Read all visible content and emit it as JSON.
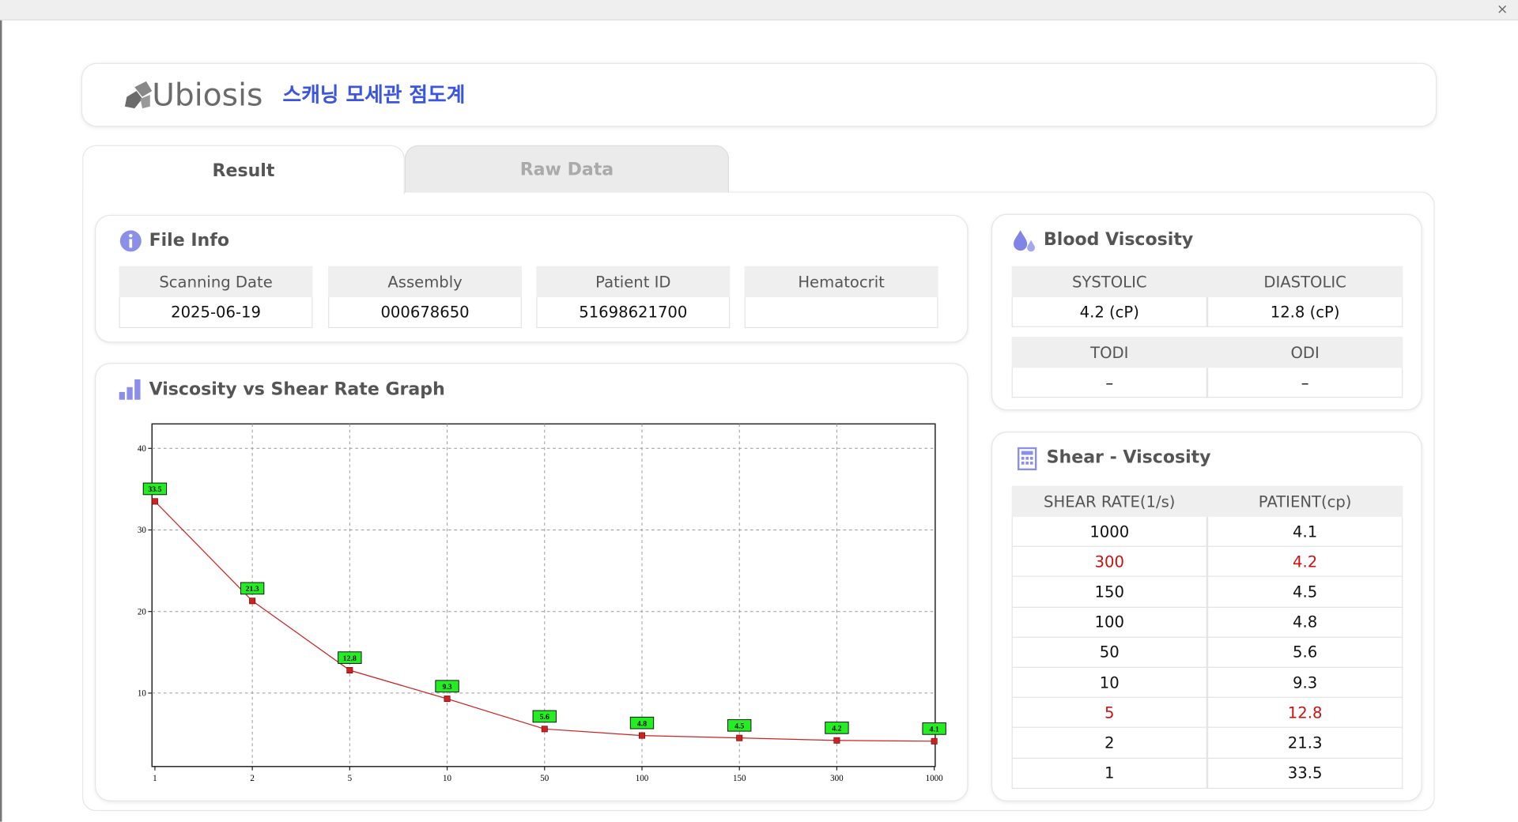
{
  "header": {
    "logo": "Ubiosis",
    "title": "스캐닝 모세관 점도계"
  },
  "tabs": [
    "Result",
    "Raw Data"
  ],
  "file_info": {
    "title": "File Info",
    "fields": [
      {
        "label": "Scanning Date",
        "value": "2025-06-19"
      },
      {
        "label": "Assembly",
        "value": "000678650"
      },
      {
        "label": "Patient ID",
        "value": "51698621700"
      },
      {
        "label": "Hematocrit"
      }
    ]
  },
  "blood_viscosity": {
    "title": "Blood Viscosity",
    "rows": [
      [
        {
          "label": "SYSTOLIC",
          "value": "4.2 (cP)"
        },
        {
          "label": "DIASTOLIC",
          "value": "12.8 (cP)"
        }
      ],
      [
        {
          "label": "TODI",
          "value": "–"
        },
        {
          "label": "ODI",
          "value": "–"
        }
      ]
    ]
  },
  "shear_viscosity": {
    "title": "Shear - Viscosity",
    "columns": [
      "SHEAR RATE(1/s)",
      "PATIENT(cp)"
    ],
    "highlight_color": "#cc1111",
    "rows": [
      {
        "cells": [
          1000,
          4.1
        ]
      },
      {
        "cells": [
          300,
          4.2
        ],
        "highlight": true
      },
      {
        "cells": [
          150,
          4.5
        ]
      },
      {
        "cells": [
          100,
          4.8
        ]
      },
      {
        "cells": [
          50,
          5.6
        ]
      },
      {
        "cells": [
          10,
          9.3
        ]
      },
      {
        "cells": [
          5,
          12.8
        ],
        "highlight": true
      },
      {
        "cells": [
          2,
          21.3
        ]
      },
      {
        "cells": [
          1,
          33.5
        ]
      }
    ]
  },
  "chart_data": {
    "type": "line",
    "title": "Viscosity vs Shear Rate Graph",
    "categories": [
      "1",
      "2",
      "5",
      "10",
      "50",
      "100",
      "150",
      "300",
      "1000"
    ],
    "values": [
      33.5,
      21.3,
      12.8,
      9.3,
      5.6,
      4.8,
      4.5,
      4.2,
      4.1
    ],
    "color": "#cc2222",
    "label_color": "#22ee22",
    "ylim": [
      1,
      43
    ],
    "yticks": [
      10,
      20,
      30,
      40
    ],
    "grid": true
  }
}
